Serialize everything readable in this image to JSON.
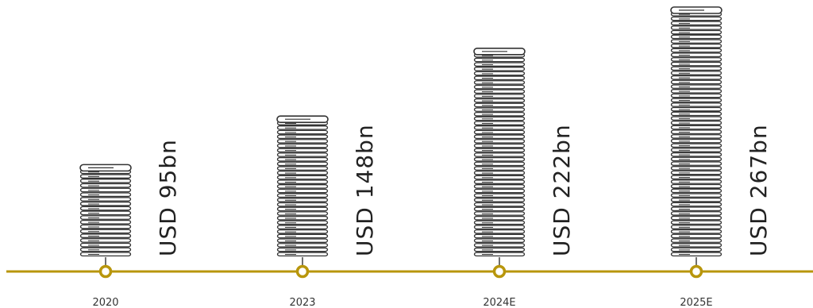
{
  "chart_data": {
    "type": "bar",
    "categories": [
      "2020",
      "2023",
      "2024E",
      "2025E"
    ],
    "values": [
      95,
      148,
      222,
      267
    ],
    "value_labels": [
      "USD 95bn",
      "USD 148bn",
      "USD 222bn",
      "USD 267bn"
    ],
    "unit": "USD bn",
    "title": "",
    "xlabel": "",
    "ylabel": "",
    "grid": false,
    "legend": "none"
  },
  "colors": {
    "timeline": "#B8960C",
    "marker_fill": "#ffffff",
    "stack": "#333333",
    "text": "#222222"
  },
  "icons": {
    "bar_unit": "server-rack-icon",
    "timeline_marker": "timeline-dot-icon"
  }
}
